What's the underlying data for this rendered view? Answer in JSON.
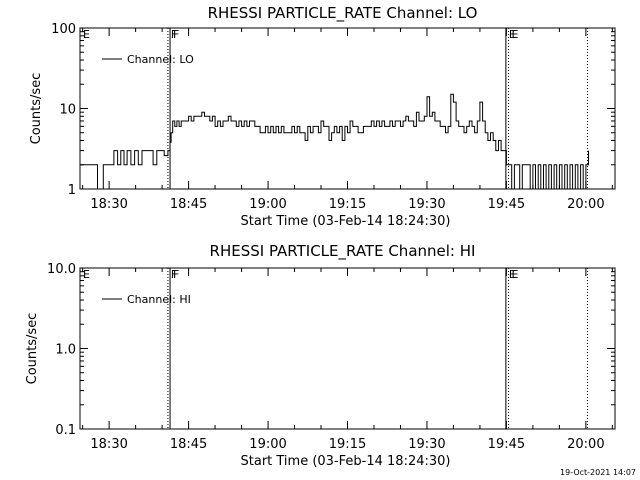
{
  "footer_date": "19-Oct-2021 14:07",
  "chart_data": [
    {
      "type": "line",
      "title": "RHESSI PARTICLE_RATE Channel: LO",
      "xlabel": "Start Time (03-Feb-14 18:24:30)",
      "ylabel": "Counts/sec",
      "y_scale": "log",
      "ylim": [
        1,
        100
      ],
      "y_ticks": [
        "1",
        "10",
        "100"
      ],
      "y_tick_values": [
        1,
        10,
        100
      ],
      "x_unit": "minutes after 18:24:30",
      "xlim": [
        0,
        101
      ],
      "x_ticks": [
        "18:30",
        "18:45",
        "19:00",
        "19:15",
        "19:30",
        "19:45",
        "20:00"
      ],
      "x_tick_values": [
        5.5,
        20.5,
        35.5,
        50.5,
        65.5,
        80.5,
        95.5
      ],
      "legend": {
        "label": "Channel: LO",
        "position": "top-left"
      },
      "markers": [
        {
          "label": "E",
          "x": 0,
          "style": "dotted"
        },
        {
          "label": "F",
          "x": 16.6,
          "style": "dotted"
        },
        {
          "label": "F",
          "x": 17.0,
          "style": "solid"
        },
        {
          "label": "E",
          "x": 80.4,
          "style": "solid"
        },
        {
          "label": "E",
          "x": 80.9,
          "style": "dotted"
        },
        {
          "label": "",
          "x": 95.8,
          "style": "dotted"
        }
      ],
      "series": [
        {
          "x": [
            0,
            3,
            3.3,
            4,
            4.4,
            5,
            5.7,
            6.4,
            7.1,
            7.7,
            8.3,
            8.9,
            9.6,
            10.3,
            11,
            11.7,
            12.4,
            13.1,
            13.8,
            14.5,
            15.2,
            15.9,
            16.6,
            17.0,
            17.2,
            17.5,
            17.9,
            18.3,
            18.7,
            19.1,
            19.6,
            20.0,
            20.5,
            21,
            21.5,
            22,
            22.5,
            23,
            23.5,
            24,
            24.5,
            25,
            25.5,
            26,
            26.5,
            27,
            27.5,
            28,
            28.5,
            29,
            29.5,
            30,
            30.5,
            31,
            31.5,
            32,
            32.5,
            33,
            33.5,
            34,
            34.5,
            35,
            35.5,
            36,
            36.5,
            37,
            37.5,
            38,
            38.5,
            39,
            39.5,
            40,
            40.5,
            41,
            41.5,
            42,
            42.5,
            43,
            43.5,
            44,
            44.5,
            45,
            45.5,
            46,
            46.5,
            47,
            47.5,
            48,
            48.5,
            49,
            49.5,
            50,
            50.5,
            51,
            51.5,
            52,
            52.5,
            53,
            53.5,
            54,
            54.5,
            55,
            55.5,
            56,
            56.5,
            57,
            57.5,
            58,
            58.5,
            59,
            59.5,
            60,
            60.5,
            61,
            61.5,
            62,
            62.5,
            63,
            63.5,
            64,
            64.5,
            65,
            65.5,
            66,
            66.5,
            67,
            67.5,
            68,
            68.5,
            69,
            69.5,
            70,
            70.5,
            71,
            71.5,
            72,
            72.5,
            73,
            73.5,
            74,
            74.5,
            75,
            75.5,
            76,
            76.5,
            77,
            77.5,
            78,
            78.5,
            79,
            79.5,
            80,
            80.5,
            81,
            81.5,
            82,
            82.5,
            83,
            83.5,
            84,
            84.5,
            85,
            85.5,
            86,
            86.5,
            87,
            87.5,
            88,
            88.5,
            89,
            89.5,
            90,
            90.5,
            91,
            91.5,
            92,
            92.5,
            93,
            93.5,
            94,
            94.5,
            95,
            95.5,
            96
          ],
          "y": [
            2,
            2,
            1,
            1,
            2,
            2,
            2,
            3,
            2,
            3,
            2,
            3,
            2,
            3,
            2,
            3,
            3,
            3,
            2,
            3,
            3,
            2.6,
            3,
            3.8,
            5,
            7,
            6,
            7,
            6,
            7,
            7,
            7,
            8,
            7,
            8,
            8,
            8,
            9,
            8,
            8,
            7,
            8,
            6,
            7,
            6,
            7,
            7,
            8,
            7,
            7,
            6,
            7,
            6,
            7,
            6,
            7,
            7,
            6,
            6,
            5,
            5,
            6,
            5,
            6,
            5,
            6,
            5,
            6,
            5,
            5,
            5,
            6,
            5,
            6,
            5,
            5,
            4,
            6,
            5,
            6,
            6,
            5,
            7,
            6,
            6,
            4,
            5,
            6,
            5,
            6,
            4,
            6,
            5,
            7,
            6,
            6,
            5,
            5,
            6,
            6,
            6,
            7,
            6,
            7,
            6,
            7,
            6,
            6,
            7,
            6,
            7,
            7,
            6,
            7,
            8,
            7,
            7,
            6,
            9,
            7,
            7,
            8,
            14,
            8,
            9,
            7,
            7,
            6,
            6,
            5,
            6,
            15,
            12,
            7,
            6,
            6,
            5,
            6,
            7,
            6,
            5,
            7,
            12,
            7,
            5,
            4,
            5,
            4,
            3,
            4,
            3,
            3,
            2,
            2,
            1,
            2,
            2,
            1,
            2,
            2,
            2,
            1,
            2,
            1,
            2,
            1,
            2,
            1,
            2,
            1,
            2,
            1,
            2,
            1,
            2,
            1,
            2,
            1,
            2,
            1,
            2,
            1,
            2,
            3
          ]
        }
      ]
    },
    {
      "type": "line",
      "title": "RHESSI PARTICLE_RATE Channel: HI",
      "xlabel": "Start Time (03-Feb-14 18:24:30)",
      "ylabel": "Counts/sec",
      "y_scale": "log",
      "ylim": [
        0.1,
        10
      ],
      "y_ticks": [
        "0.1",
        "1.0",
        "10.0"
      ],
      "y_tick_values": [
        0.1,
        1,
        10
      ],
      "x_unit": "minutes after 18:24:30",
      "xlim": [
        0,
        101
      ],
      "x_ticks": [
        "18:30",
        "18:45",
        "19:00",
        "19:15",
        "19:30",
        "19:45",
        "20:00"
      ],
      "x_tick_values": [
        5.5,
        20.5,
        35.5,
        50.5,
        65.5,
        80.5,
        95.5
      ],
      "legend": {
        "label": "Channel: HI",
        "position": "top-left"
      },
      "markers": [
        {
          "label": "E",
          "x": 0,
          "style": "dotted"
        },
        {
          "label": "F",
          "x": 16.6,
          "style": "dotted"
        },
        {
          "label": "F",
          "x": 17.0,
          "style": "solid"
        },
        {
          "label": "E",
          "x": 80.4,
          "style": "solid"
        },
        {
          "label": "E",
          "x": 80.9,
          "style": "dotted"
        },
        {
          "label": "",
          "x": 95.8,
          "style": "dotted"
        }
      ],
      "series": [
        {
          "x": [],
          "y": []
        }
      ]
    }
  ]
}
